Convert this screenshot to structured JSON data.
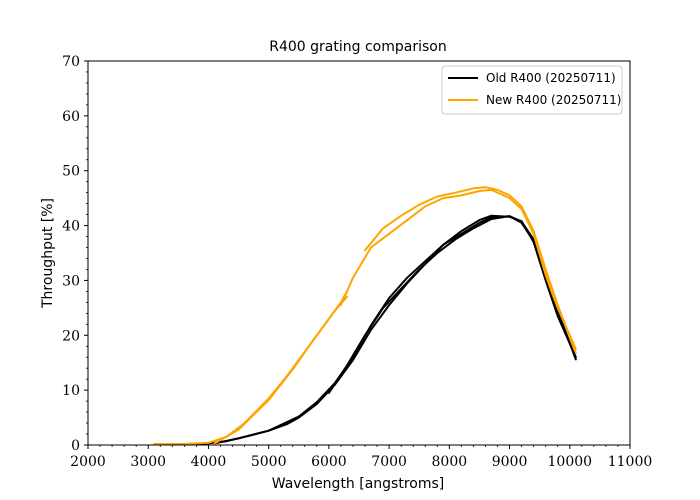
{
  "chart_data": {
    "type": "line",
    "title": "R400 grating comparison",
    "xlabel": "Wavelength [angstroms]",
    "ylabel": "Throughput [%]",
    "xlim": [
      2000,
      11000
    ],
    "ylim": [
      0,
      70
    ],
    "xticks": [
      2000,
      3000,
      4000,
      5000,
      6000,
      7000,
      8000,
      9000,
      10000,
      11000
    ],
    "yticks": [
      0,
      10,
      20,
      30,
      40,
      50,
      60,
      70
    ],
    "grid": false,
    "legend_position": "top-right",
    "series": [
      {
        "name": "Old R400 (20250711)",
        "color": "#000000",
        "segments": [
          [
            [
              3100,
              0.1
            ],
            [
              3500,
              0.15
            ],
            [
              4000,
              0.3
            ],
            [
              4300,
              0.7
            ],
            [
              4600,
              1.5
            ],
            [
              5000,
              2.6
            ],
            [
              5300,
              3.8
            ],
            [
              5500,
              5.0
            ],
            [
              5800,
              7.5
            ],
            [
              6100,
              11.0
            ],
            [
              6400,
              15.5
            ],
            [
              6700,
              21.0
            ],
            [
              7000,
              25.5
            ],
            [
              7300,
              29.5
            ],
            [
              7600,
              33.0
            ],
            [
              7900,
              36.5
            ],
            [
              8200,
              39.0
            ],
            [
              8500,
              41.0
            ],
            [
              8700,
              41.8
            ],
            [
              9000,
              41.6
            ],
            [
              9200,
              40.8
            ],
            [
              9400,
              37.0
            ],
            [
              9600,
              30.0
            ],
            [
              9800,
              23.5
            ],
            [
              10100,
              16.0
            ]
          ],
          [
            [
              4100,
              0.3
            ],
            [
              4500,
              1.2
            ],
            [
              5000,
              2.6
            ],
            [
              5500,
              5.2
            ],
            [
              5800,
              7.8
            ],
            [
              6100,
              11.3
            ],
            [
              6400,
              16.0
            ],
            [
              6700,
              21.8
            ],
            [
              7000,
              26.8
            ],
            [
              7300,
              30.5
            ],
            [
              7600,
              33.5
            ],
            [
              7900,
              36.5
            ],
            [
              8200,
              38.5
            ],
            [
              8500,
              40.5
            ],
            [
              8700,
              41.5
            ],
            [
              9000,
              41.7
            ],
            [
              9200,
              40.7
            ],
            [
              9400,
              37.5
            ],
            [
              9600,
              31.5
            ],
            [
              9800,
              24.5
            ],
            [
              10100,
              15.6
            ]
          ],
          [
            [
              6000,
              9.5
            ],
            [
              6300,
              14.5
            ],
            [
              6600,
              20.0
            ],
            [
              6900,
              25.0
            ],
            [
              7200,
              28.5
            ],
            [
              7500,
              32.0
            ],
            [
              7800,
              35.0
            ],
            [
              8100,
              37.5
            ],
            [
              8400,
              39.5
            ],
            [
              8700,
              41.2
            ],
            [
              9000,
              41.7
            ],
            [
              9200,
              40.5
            ],
            [
              9350,
              38.0
            ]
          ]
        ]
      },
      {
        "name": "New R400 (20250711)",
        "color": "#ffa500",
        "segments": [
          [
            [
              3100,
              0.2
            ],
            [
              3500,
              0.15
            ],
            [
              4000,
              0.4
            ],
            [
              4300,
              1.5
            ],
            [
              4600,
              4.0
            ],
            [
              5000,
              8.5
            ],
            [
              5300,
              12.5
            ],
            [
              5600,
              17.0
            ],
            [
              5900,
              21.5
            ],
            [
              6100,
              24.5
            ],
            [
              6300,
              27.0
            ]
          ],
          [
            [
              4100,
              0.3
            ],
            [
              4500,
              2.8
            ],
            [
              5000,
              8.2
            ],
            [
              5400,
              13.8
            ],
            [
              5700,
              18.5
            ],
            [
              6000,
              23.0
            ],
            [
              6200,
              26.0
            ],
            [
              6300,
              28.0
            ]
          ],
          [
            [
              6200,
              25.5
            ],
            [
              6400,
              30.5
            ],
            [
              6700,
              36.0
            ],
            [
              7000,
              38.5
            ],
            [
              7300,
              41.0
            ],
            [
              7600,
              43.5
            ],
            [
              7900,
              45.0
            ],
            [
              8200,
              45.5
            ],
            [
              8500,
              46.3
            ],
            [
              8700,
              46.5
            ],
            [
              9000,
              45.0
            ],
            [
              9200,
              43.0
            ],
            [
              9400,
              38.5
            ],
            [
              9600,
              31.0
            ],
            [
              9800,
              25.0
            ],
            [
              10100,
              17.5
            ]
          ],
          [
            [
              6600,
              35.5
            ],
            [
              6900,
              39.5
            ],
            [
              7200,
              41.8
            ],
            [
              7500,
              43.8
            ],
            [
              7800,
              45.3
            ],
            [
              8100,
              46.0
            ],
            [
              8400,
              46.8
            ],
            [
              8600,
              47.0
            ],
            [
              8800,
              46.5
            ],
            [
              9000,
              45.5
            ],
            [
              9200,
              43.5
            ],
            [
              9400,
              39.0
            ],
            [
              9600,
              32.0
            ],
            [
              9800,
              25.5
            ],
            [
              10100,
              16.8
            ]
          ]
        ]
      }
    ]
  }
}
